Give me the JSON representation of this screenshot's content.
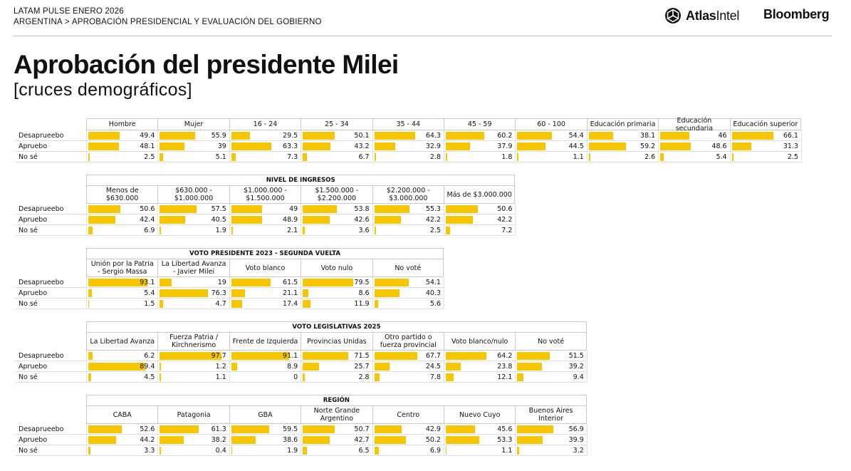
{
  "header": {
    "line1": "LATAM PULSE ENERO 2026",
    "breadcrumb_country": "ARGENTINA",
    "breadcrumb_sep": ">",
    "breadcrumb_section": "APROBACIÓN PRESIDENCIAL Y EVALUACIÓN DEL GOBIERNO",
    "logo_atlas_bold": "Atlas",
    "logo_atlas_light": "Intel",
    "logo_bloomberg": "Bloomberg"
  },
  "title": "Aprobación del presidente Milei",
  "subtitle": "[cruces demográficos]",
  "colors": {
    "bar": "#f6c700",
    "border": "#c9c9c9",
    "text": "#111111"
  },
  "chart_data": [
    {
      "type": "table",
      "group_title": "",
      "columns": [
        "Hombre",
        "Mujer",
        "16 - 24",
        "25 - 34",
        "35 - 44",
        "45 - 59",
        "60 - 100",
        "Educación primaria",
        "Educación secundaria",
        "Educación superior"
      ],
      "rows": [
        {
          "label": "Desaprueebo",
          "values": [
            49.4,
            55.9,
            29.5,
            50.1,
            64.3,
            60.2,
            54.4,
            38.1,
            46,
            66.1
          ]
        },
        {
          "label": "Apruebo",
          "values": [
            48.1,
            39,
            63.3,
            43.2,
            32.9,
            37.9,
            44.5,
            59.2,
            48.6,
            31.3
          ]
        },
        {
          "label": "No sé",
          "values": [
            2.5,
            5.1,
            7.3,
            6.7,
            2.8,
            1.8,
            1.1,
            2.6,
            5.4,
            2.5
          ]
        }
      ]
    },
    {
      "type": "table",
      "group_title": "NIVEL DE INGRESOS",
      "columns": [
        "Menos de $630.000",
        "$630.000 - $1.000.000",
        "$1.000.000 - $1.500.000",
        "$1.500.000 - $2.200.000",
        "$2.200.000 - $3.000.000",
        "Más de $3.000.000"
      ],
      "rows": [
        {
          "label": "Desaprueebo",
          "values": [
            50.6,
            57.5,
            49,
            53.8,
            55.3,
            50.6
          ]
        },
        {
          "label": "Apruebo",
          "values": [
            42.4,
            40.5,
            48.9,
            42.6,
            42.2,
            42.2
          ]
        },
        {
          "label": "No sé",
          "values": [
            6.9,
            1.9,
            2.1,
            3.6,
            2.5,
            7.2
          ]
        }
      ]
    },
    {
      "type": "table",
      "group_title": "VOTO PRESIDENTE 2023 - SEGUNDA VUELTA",
      "columns": [
        "Unión por la Patria - Sergio Massa",
        "La Libertad Avanza - Javier Milei",
        "Voto blanco",
        "Voto nulo",
        "No voté"
      ],
      "rows": [
        {
          "label": "Desaprueebo",
          "values": [
            93.1,
            19,
            61.5,
            79.5,
            54.1
          ]
        },
        {
          "label": "Apruebo",
          "values": [
            5.4,
            76.3,
            21.1,
            8.6,
            40.3
          ]
        },
        {
          "label": "No sé",
          "values": [
            1.5,
            4.7,
            17.4,
            11.9,
            5.6
          ]
        }
      ]
    },
    {
      "type": "table",
      "group_title": "VOTO LEGISLATIVAS 2025",
      "columns": [
        "La Libertad Avanza",
        "Fuerza Patria / Kirchnerismo",
        "Frente de Izquierda",
        "Provincias Unidas",
        "Otro partido o fuerza provincial",
        "Voto blanco/nulo",
        "No voté"
      ],
      "rows": [
        {
          "label": "Desaprueebo",
          "values": [
            6.2,
            97.7,
            91.1,
            71.5,
            67.7,
            64.2,
            51.5
          ]
        },
        {
          "label": "Apruebo",
          "values": [
            89.4,
            1.2,
            8.9,
            25.7,
            24.5,
            23.8,
            39.2
          ]
        },
        {
          "label": "No sé",
          "values": [
            4.5,
            1.1,
            0,
            2.8,
            7.8,
            12.1,
            9.4
          ]
        }
      ]
    },
    {
      "type": "table",
      "group_title": "REGIÓN",
      "columns": [
        "CABA",
        "Patagonia",
        "GBA",
        "Norte Grande Argentino",
        "Centro",
        "Nuevo Cuyo",
        "Buenos Aires Interior"
      ],
      "rows": [
        {
          "label": "Desaprueebo",
          "values": [
            52.6,
            61.3,
            59.5,
            50.7,
            42.9,
            45.6,
            56.9
          ]
        },
        {
          "label": "Apruebo",
          "values": [
            44.2,
            38.2,
            38.6,
            42.7,
            50.2,
            53.3,
            39.9
          ]
        },
        {
          "label": "No sé",
          "values": [
            3.3,
            0.4,
            1.9,
            6.5,
            6.9,
            1.1,
            3.2
          ]
        }
      ]
    }
  ]
}
